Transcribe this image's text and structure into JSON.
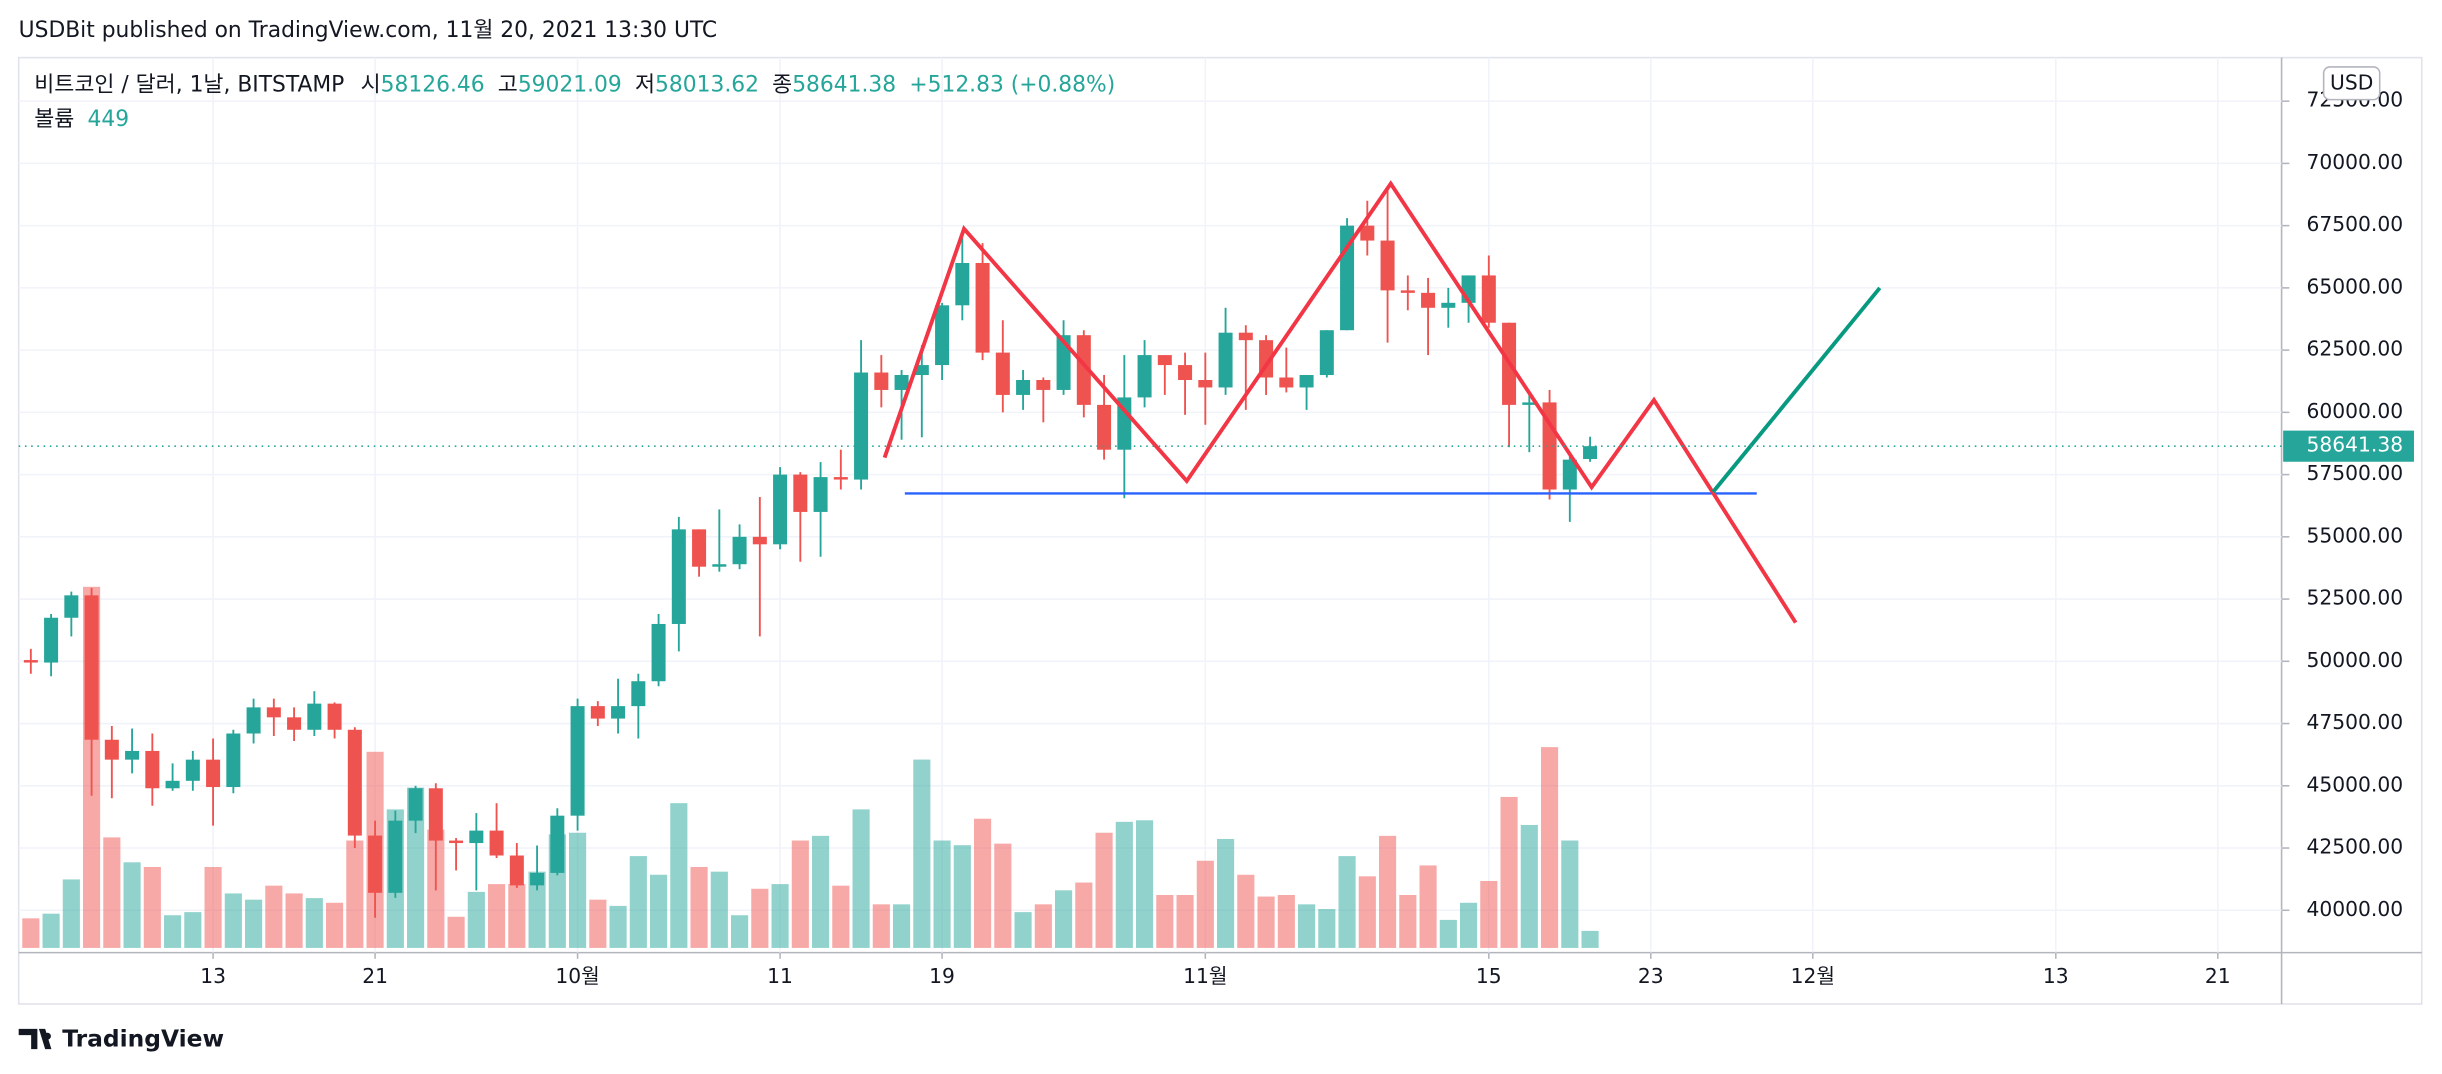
{
  "header": {
    "published": "USDBit published on TradingView.com, 11월 20, 2021 13:30 UTC"
  },
  "footer": {
    "brand": "TradingView"
  },
  "chart_data": {
    "type": "candlestick",
    "title": "비트코인 / 달러, 1날, BITSTAMP",
    "ohlc_labels": [
      "시",
      "고",
      "저",
      "종"
    ],
    "change": "+512.83 (+0.88%)",
    "volume_label": "볼륨",
    "currency": "USD",
    "up_color": "#26a69a",
    "down_color": "#ef5350",
    "open": [
      50050,
      49950,
      51750,
      52650,
      46850,
      46050,
      46400,
      44900,
      45200,
      46050,
      44950,
      47100,
      48150,
      47750,
      47250,
      48300,
      47250,
      43000,
      40700,
      43600,
      44900,
      42800,
      42700,
      43200,
      42200,
      41000,
      41500,
      43800,
      48200,
      47700,
      48200,
      49200,
      51500,
      55300,
      53800,
      53900,
      55000,
      54700,
      57500,
      56000,
      57400,
      57300,
      61600,
      60900,
      61500,
      61900,
      64300,
      66000,
      62400,
      60700,
      61300,
      60900,
      63100,
      60300,
      58500,
      60600,
      62300,
      61900,
      61300,
      61000,
      63200,
      62900,
      61400,
      61000,
      61500,
      63300,
      67500,
      66900,
      64900,
      64800,
      64200,
      64400,
      65500,
      63600,
      60300,
      60400,
      56900,
      58126.46
    ],
    "high": [
      50500,
      51900,
      52800,
      52950,
      47400,
      47300,
      47100,
      45900,
      46400,
      46900,
      47250,
      48500,
      48500,
      48150,
      48800,
      48350,
      47350,
      43600,
      44000,
      45000,
      45100,
      42900,
      43900,
      44300,
      42700,
      42600,
      44100,
      48500,
      48400,
      49300,
      49500,
      51900,
      55800,
      55300,
      56100,
      55500,
      56600,
      57800,
      57600,
      58000,
      58500,
      62900,
      62300,
      61700,
      62700,
      64400,
      67000,
      66800,
      63700,
      61700,
      61400,
      63700,
      63300,
      61500,
      62300,
      62900,
      62300,
      62400,
      62400,
      64200,
      63500,
      63100,
      62600,
      61500,
      63300,
      67800,
      68500,
      69000,
      65500,
      65400,
      65000,
      65500,
      66300,
      63600,
      60700,
      60900,
      58300,
      59021.09
    ],
    "low": [
      49500,
      49400,
      51000,
      44600,
      44500,
      45500,
      44200,
      44800,
      44800,
      43400,
      44700,
      46700,
      47000,
      46800,
      47000,
      46900,
      42500,
      39700,
      40500,
      43100,
      40800,
      41600,
      40800,
      42100,
      40900,
      40800,
      41400,
      43200,
      47400,
      47100,
      46900,
      49000,
      50400,
      53400,
      53600,
      53700,
      51000,
      54500,
      54000,
      54200,
      56900,
      56900,
      60200,
      58900,
      59000,
      61300,
      63700,
      62100,
      60000,
      60100,
      59600,
      60700,
      59800,
      58100,
      56550,
      60200,
      60700,
      59900,
      59500,
      60700,
      60100,
      60700,
      60800,
      60100,
      61400,
      63300,
      66300,
      62800,
      64100,
      62300,
      63400,
      63600,
      63400,
      58600,
      58400,
      56500,
      55600,
      58013.62
    ],
    "close": [
      49950,
      51750,
      52650,
      46850,
      46050,
      46400,
      44900,
      45200,
      46050,
      44950,
      47100,
      48150,
      47750,
      47250,
      48300,
      47250,
      43000,
      40700,
      43600,
      44900,
      42800,
      42700,
      43200,
      42200,
      41000,
      41500,
      43800,
      48200,
      47700,
      48200,
      49200,
      51500,
      55300,
      53800,
      53900,
      55000,
      54700,
      57500,
      56000,
      57400,
      57300,
      61600,
      60900,
      61500,
      61900,
      64300,
      66000,
      62400,
      60700,
      61300,
      60900,
      63100,
      60300,
      58500,
      60600,
      62300,
      61900,
      61300,
      61000,
      63200,
      62900,
      61400,
      61000,
      61500,
      63300,
      67500,
      66900,
      64900,
      64800,
      64200,
      64400,
      65500,
      63600,
      60300,
      60400,
      56900,
      58100,
      58641.38
    ],
    "volume": [
      779,
      902,
      1804,
      9512,
      2911,
      2255,
      2132,
      861,
      943,
      2132,
      1435,
      1271,
      1640,
      1435,
      1312,
      1189,
      2829,
      5166,
      3649,
      4223,
      3116,
      820,
      1476,
      1681,
      1681,
      2009,
      2993,
      3034,
      1271,
      1107,
      2419,
      1927,
      3813,
      2132,
      2009,
      861,
      1558,
      1681,
      2829,
      2952,
      1640,
      3649,
      1148,
      1148,
      4961,
      2829,
      2706,
      3403,
      2747,
      943,
      1148,
      1517,
      1722,
      3034,
      3321,
      3362,
      1394,
      1394,
      2296,
      2870,
      1927,
      1353,
      1394,
      1148,
      1025,
      2419,
      1886,
      2952,
      1394,
      2173,
      738,
      1189,
      1763,
      3977,
      3239,
      5289,
      2829,
      449
    ],
    "ylim": [
      38300,
      74250
    ],
    "yticks": [
      {
        "value": 40000,
        "label": "40000.00"
      },
      {
        "value": 42500,
        "label": "42500.00"
      },
      {
        "value": 45000,
        "label": "45000.00"
      },
      {
        "value": 47500,
        "label": "47500.00"
      },
      {
        "value": 50000,
        "label": "50000.00"
      },
      {
        "value": 52500,
        "label": "52500.00"
      },
      {
        "value": 55000,
        "label": "55000.00"
      },
      {
        "value": 57500,
        "label": "57500.00"
      },
      {
        "value": 60000,
        "label": "60000.00"
      },
      {
        "value": 62500,
        "label": "62500.00"
      },
      {
        "value": 65000,
        "label": "65000.00"
      },
      {
        "value": 67500,
        "label": "67500.00"
      },
      {
        "value": 70000,
        "label": "70000.00"
      },
      {
        "value": 72500,
        "label": "72500.00"
      }
    ],
    "xlim": [
      -0.6,
      111.15
    ],
    "xticks": [
      {
        "value": 9,
        "label": "13"
      },
      {
        "value": 17,
        "label": "21"
      },
      {
        "value": 27,
        "label": "10월"
      },
      {
        "value": 37,
        "label": "11"
      },
      {
        "value": 45,
        "label": "19"
      },
      {
        "value": 58,
        "label": "11월"
      },
      {
        "value": 72,
        "label": "15"
      },
      {
        "value": 80,
        "label": "23"
      },
      {
        "value": 88,
        "label": "12월"
      },
      {
        "value": 100,
        "label": "13"
      },
      {
        "value": 108,
        "label": "21"
      }
    ],
    "grid": true
  }
}
